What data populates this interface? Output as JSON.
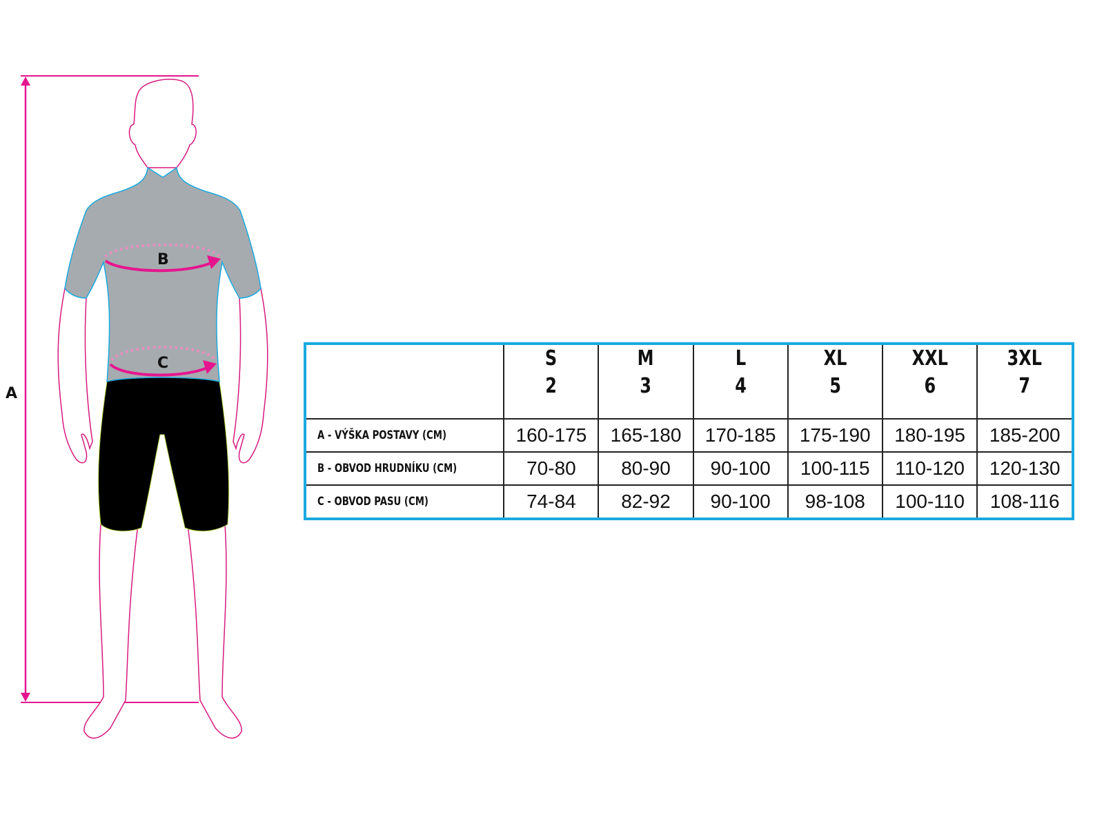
{
  "figure": {
    "labels": {
      "height": "A",
      "chest": "B",
      "waist": "C"
    },
    "colors": {
      "measure_line": "#e5158f",
      "shirt": "#a6abaf",
      "shirt_outline": "#1aa9e0",
      "shorts": "#000000",
      "body_outline": "#d6197f"
    }
  },
  "table": {
    "border_color": "#1aa9e0",
    "sizes": [
      {
        "letter": "S",
        "number": "2"
      },
      {
        "letter": "M",
        "number": "3"
      },
      {
        "letter": "L",
        "number": "4"
      },
      {
        "letter": "XL",
        "number": "5"
      },
      {
        "letter": "XXL",
        "number": "6"
      },
      {
        "letter": "3XL",
        "number": "7"
      }
    ],
    "rows": [
      {
        "label": "A - VÝŠKA POSTAVY (CM)",
        "values": [
          "160-175",
          "165-180",
          "170-185",
          "175-190",
          "180-195",
          "185-200"
        ]
      },
      {
        "label": "B - OBVOD HRUDNÍKU (CM)",
        "values": [
          "70-80",
          "80-90",
          "90-100",
          "100-115",
          "110-120",
          "120-130"
        ]
      },
      {
        "label": "C - OBVOD PASU (CM)",
        "values": [
          "74-84",
          "82-92",
          "90-100",
          "98-108",
          "100-110",
          "108-116"
        ]
      }
    ]
  }
}
